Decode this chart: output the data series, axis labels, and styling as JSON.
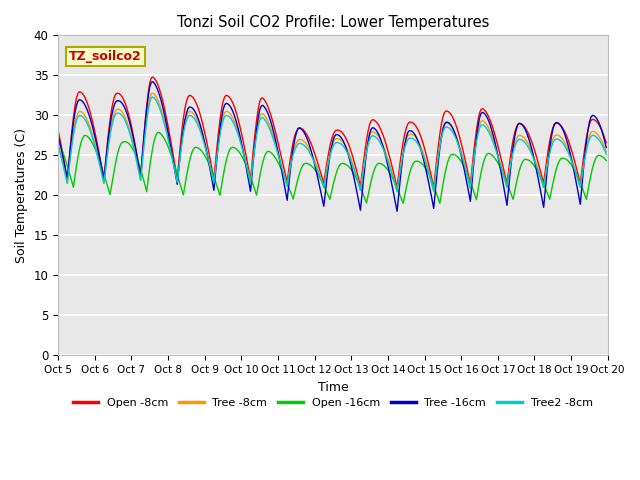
{
  "title": "Tonzi Soil CO2 Profile: Lower Temperatures",
  "xlabel": "Time",
  "ylabel": "Soil Temperatures (C)",
  "ylim": [
    0,
    40
  ],
  "yticks": [
    0,
    5,
    10,
    15,
    20,
    25,
    30,
    35,
    40
  ],
  "x_tick_days": [
    5,
    6,
    7,
    8,
    9,
    10,
    11,
    12,
    13,
    14,
    15,
    16,
    17,
    18,
    19,
    20
  ],
  "x_tick_labels": [
    "Oct 5",
    "Oct 6",
    "Oct 7",
    "Oct 8",
    "Oct 9",
    "Oct 10",
    "Oct 11",
    "Oct 12",
    "Oct 13",
    "Oct 14",
    "Oct 15",
    "Oct 16",
    "Oct 17",
    "Oct 18",
    "Oct 19",
    "Oct 20"
  ],
  "series": [
    {
      "label": "Open -8cm",
      "color": "#ff0000"
    },
    {
      "label": "Tree -8cm",
      "color": "#ff9900"
    },
    {
      "label": "Open -16cm",
      "color": "#00cc00"
    },
    {
      "label": "Tree -16cm",
      "color": "#0000cc"
    },
    {
      "label": "Tree2 -8cm",
      "color": "#00cccc"
    }
  ],
  "annotation_text": "TZ_soilco2",
  "annotation_bg": "#ffffcc",
  "annotation_fg": "#cc0000",
  "annotation_border": "#aaaa00",
  "bg_color": "#e8e8e8",
  "fig_bg": "#ffffff"
}
